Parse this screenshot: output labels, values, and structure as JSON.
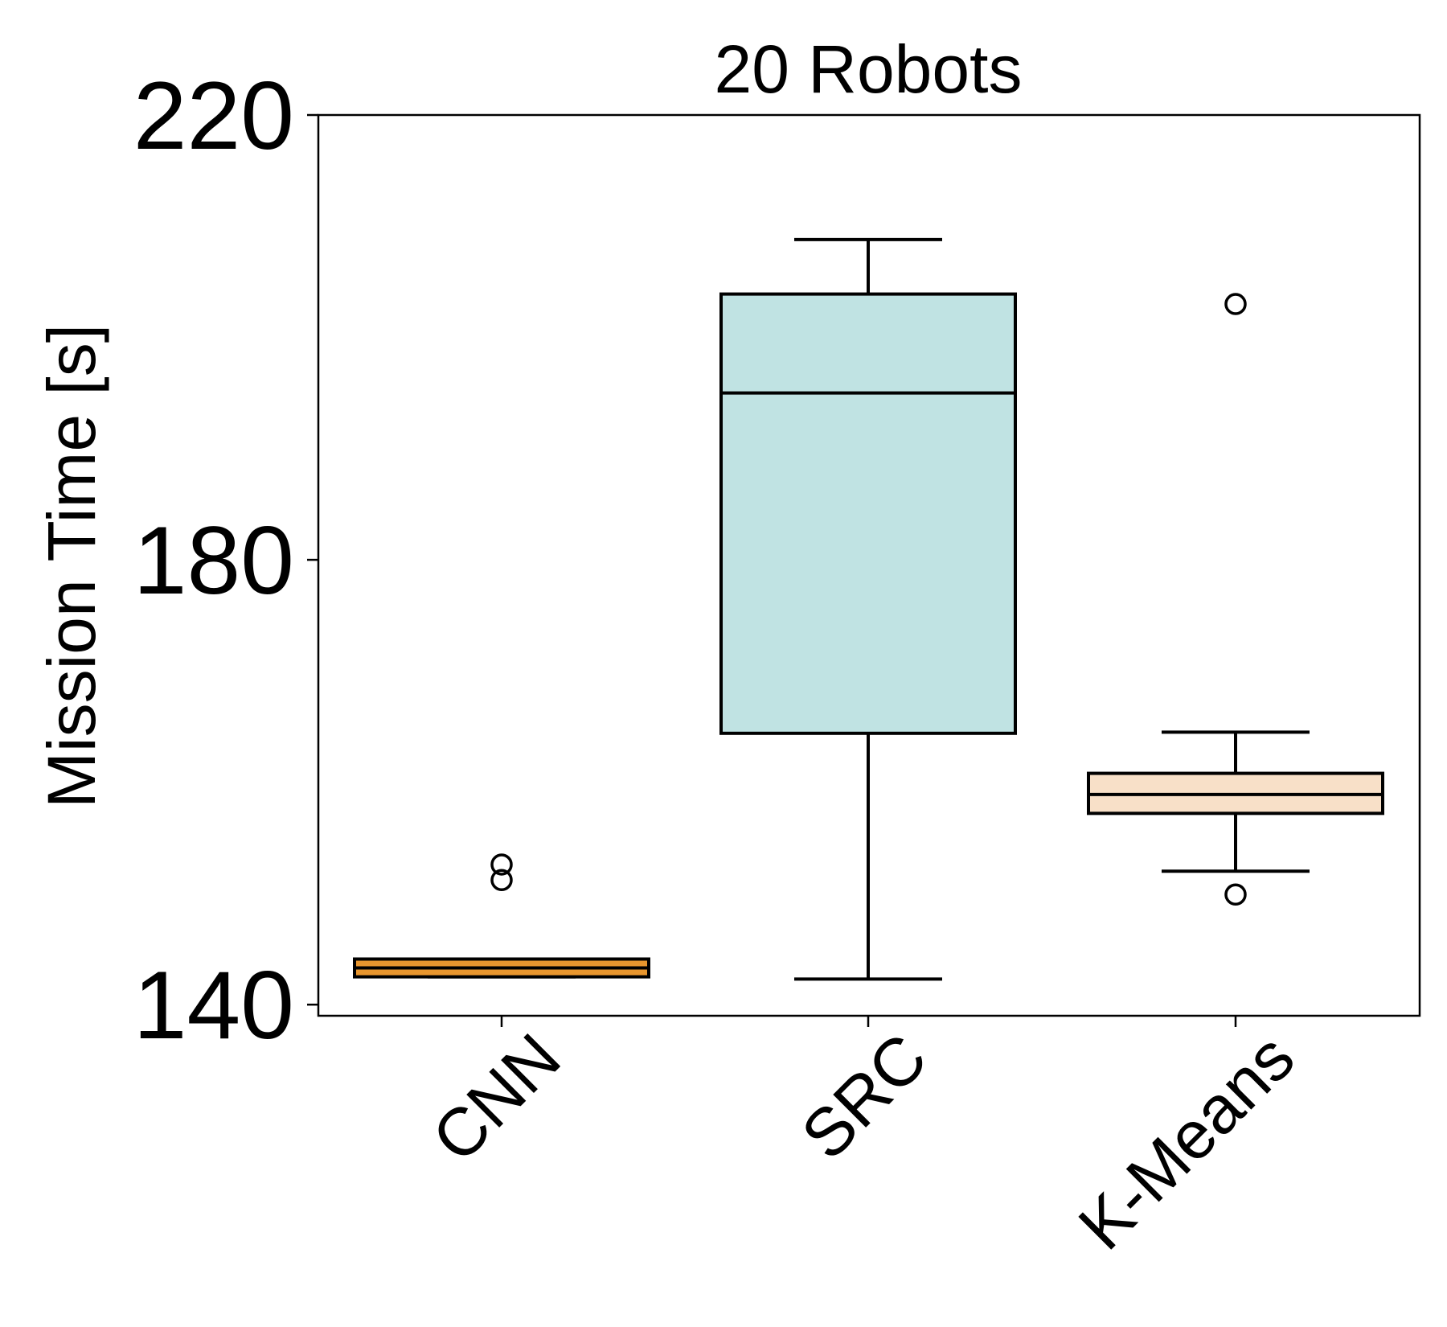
{
  "chart_data": {
    "type": "box",
    "title": "20 Robots",
    "xlabel": "",
    "ylabel": "Mission Time [s]",
    "ylim": [
      139,
      220
    ],
    "yticks": [
      140,
      180,
      220
    ],
    "grid": false,
    "categories": [
      "CNN",
      "SRC",
      "K-Means"
    ],
    "boxes": [
      {
        "category": "CNN",
        "whisker_low": 142.5,
        "q1": 142.5,
        "median": 143.3,
        "q3": 144.1,
        "whisker_high": 144.1,
        "outliers": [
          151.2,
          152.6
        ],
        "color": "#e8962e"
      },
      {
        "category": "SRC",
        "whisker_low": 142.3,
        "q1": 164.4,
        "median": 195.0,
        "q3": 203.9,
        "whisker_high": 208.8,
        "outliers": [],
        "color": "#c0e3e3"
      },
      {
        "category": "K-Means",
        "whisker_low": 152.0,
        "q1": 157.2,
        "median": 158.9,
        "q3": 160.8,
        "whisker_high": 164.5,
        "outliers": [
          149.9,
          203.0
        ],
        "color": "#f8e0c8"
      }
    ]
  }
}
